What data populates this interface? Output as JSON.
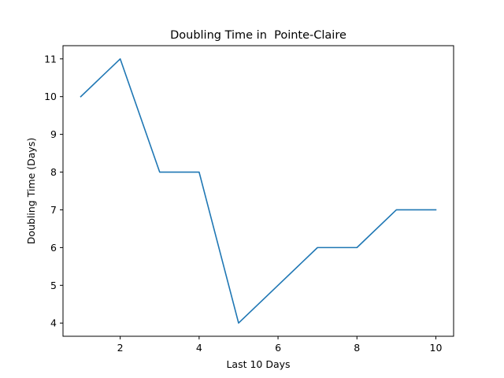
{
  "chart_data": {
    "type": "line",
    "title": "Doubling Time in  Pointe-Claire",
    "xlabel": "Last 10 Days",
    "ylabel": "Doubling Time (Days)",
    "xlim": [
      0.55,
      10.45
    ],
    "ylim": [
      3.65,
      11.35
    ],
    "xticks": [
      2,
      4,
      6,
      8,
      10
    ],
    "yticks": [
      4,
      5,
      6,
      7,
      8,
      9,
      10,
      11
    ],
    "grid": false,
    "series": [
      {
        "color": "#1f77b4",
        "x": [
          1,
          2,
          3,
          4,
          5,
          6,
          7,
          8,
          9,
          10
        ],
        "y": [
          10,
          11,
          8,
          8,
          4,
          5,
          6,
          6,
          7,
          7
        ]
      }
    ]
  }
}
